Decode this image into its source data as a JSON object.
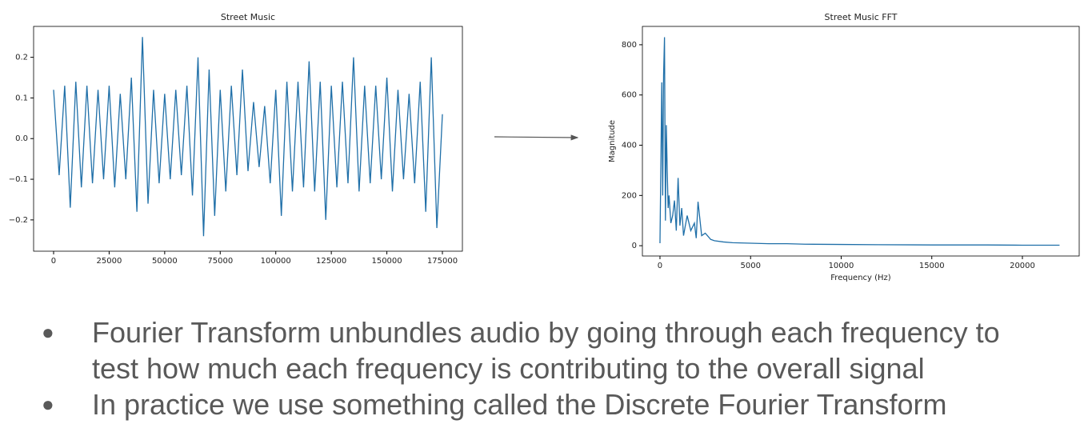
{
  "chart_data": [
    {
      "type": "line",
      "title": "Street Music",
      "x": [
        0,
        2500,
        5000,
        7500,
        10000,
        12500,
        15000,
        17500,
        20000,
        22500,
        25000,
        27500,
        30000,
        32500,
        35000,
        37500,
        40000,
        42500,
        45000,
        47500,
        50000,
        52500,
        55000,
        57500,
        60000,
        62500,
        65000,
        67500,
        70000,
        72500,
        75000,
        77500,
        80000,
        82500,
        85000,
        87500,
        90000,
        92500,
        95000,
        97500,
        100000,
        102500,
        105000,
        107500,
        110000,
        112500,
        115000,
        117500,
        120000,
        122500,
        125000,
        127500,
        130000,
        132500,
        135000,
        137500,
        140000,
        142500,
        145000,
        147500,
        150000,
        152500,
        155000,
        157500,
        160000,
        162500,
        165000,
        167500,
        170000,
        172500,
        175000
      ],
      "series": [
        {
          "color": "#1f6fa8",
          "values": [
            0.12,
            -0.09,
            0.13,
            -0.17,
            0.14,
            -0.12,
            0.13,
            -0.11,
            0.12,
            -0.1,
            0.13,
            -0.12,
            0.11,
            -0.1,
            0.15,
            -0.18,
            0.25,
            -0.16,
            0.12,
            -0.11,
            0.11,
            -0.1,
            0.12,
            -0.09,
            0.13,
            -0.14,
            0.2,
            -0.24,
            0.17,
            -0.19,
            0.12,
            -0.13,
            0.13,
            -0.09,
            0.17,
            -0.08,
            0.09,
            -0.07,
            0.08,
            -0.11,
            0.12,
            -0.19,
            0.14,
            -0.13,
            0.14,
            -0.12,
            0.19,
            -0.13,
            0.14,
            -0.2,
            0.13,
            -0.12,
            0.14,
            -0.11,
            0.2,
            -0.13,
            0.13,
            -0.11,
            0.13,
            -0.1,
            0.15,
            -0.13,
            0.12,
            -0.1,
            0.11,
            -0.11,
            0.14,
            -0.18,
            0.2,
            -0.22,
            0.06
          ]
        }
      ],
      "xlim": [
        -9000,
        184000
      ],
      "xticks": [
        0,
        25000,
        50000,
        75000,
        100000,
        125000,
        150000,
        175000
      ],
      "ylim": [
        -0.277,
        0.276
      ],
      "yticks": [
        {
          "value": -0.2,
          "label": "−0.2"
        },
        {
          "value": -0.1,
          "label": "−0.1"
        },
        {
          "value": 0,
          "label": "0.0"
        },
        {
          "value": 0.1,
          "label": "0.1"
        },
        {
          "value": 0.2,
          "label": "0.2"
        }
      ]
    },
    {
      "type": "line",
      "title": "Street Music FFT",
      "xlabel": "Frequency (Hz)",
      "ylabel": "Magnitude",
      "x": [
        0,
        100,
        150,
        200,
        250,
        300,
        350,
        400,
        450,
        500,
        600,
        700,
        800,
        900,
        1000,
        1100,
        1200,
        1300,
        1500,
        1700,
        1900,
        2000,
        2100,
        2300,
        2500,
        2800,
        3000,
        3500,
        4000,
        5000,
        6000,
        7000,
        8000,
        10000,
        12000,
        15000,
        18000,
        20000,
        22050
      ],
      "series": [
        {
          "color": "#1f6fa8",
          "values": [
            10,
            650,
            200,
            680,
            830,
            100,
            480,
            300,
            150,
            200,
            90,
            120,
            180,
            60,
            270,
            80,
            150,
            40,
            120,
            60,
            90,
            30,
            175,
            40,
            50,
            25,
            20,
            15,
            12,
            10,
            8,
            8,
            6,
            5,
            4,
            3,
            3,
            2,
            2
          ]
        }
      ],
      "xlim": [
        -970,
        23135
      ],
      "xticks": [
        0,
        5000,
        10000,
        15000,
        20000
      ],
      "ylim": [
        -41,
        873
      ],
      "yticks": [
        0,
        200,
        400,
        600,
        800
      ]
    }
  ],
  "bullets": [
    "Fourier Transform unbundles audio by going through each frequency to test how much each frequency is contributing to the overall signal",
    "In practice we use something called the Discrete Fourier Transform"
  ]
}
